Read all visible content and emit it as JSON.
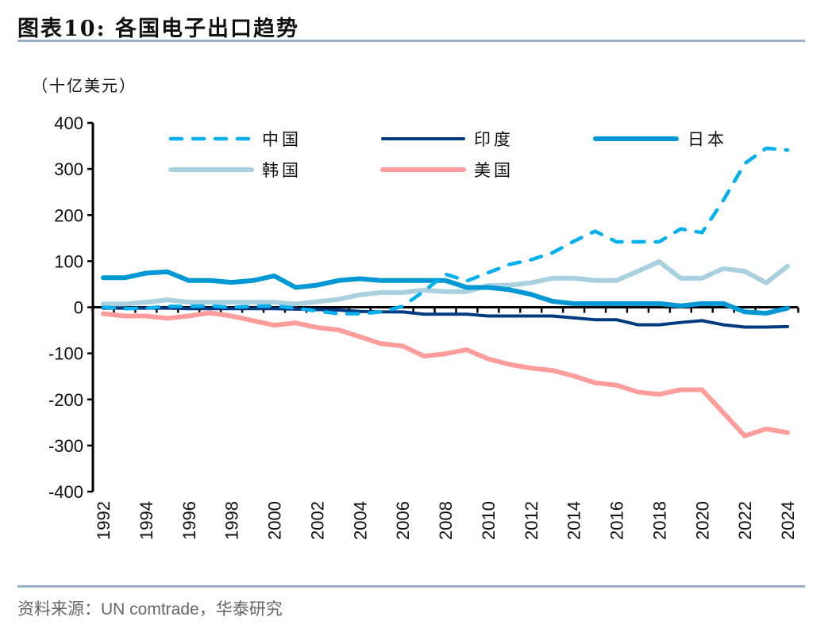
{
  "header": {
    "title": "图表10:  各国电子出口趋势",
    "unit": "（十亿美元）"
  },
  "footer": {
    "source": "资料来源：UN comtrade，华泰研究"
  },
  "chart_data": {
    "type": "line",
    "title": "各国电子出口趋势",
    "ylabel": "（十亿美元）",
    "xlabel": "",
    "ylim": [
      -400,
      400
    ],
    "yticks": [
      "400",
      "300",
      "200",
      "100",
      "0",
      "-100",
      "-200",
      "-300",
      "-400"
    ],
    "ytick_values": [
      400,
      300,
      200,
      100,
      0,
      -100,
      -200,
      -300,
      -400
    ],
    "x": [
      1992,
      1993,
      1994,
      1995,
      1996,
      1997,
      1998,
      1999,
      2000,
      2001,
      2002,
      2003,
      2004,
      2005,
      2006,
      2007,
      2008,
      2009,
      2010,
      2011,
      2012,
      2013,
      2014,
      2015,
      2016,
      2017,
      2018,
      2019,
      2020,
      2021,
      2022,
      2023,
      2024
    ],
    "xtick_labels": [
      "1992",
      "1994",
      "1996",
      "1998",
      "2000",
      "2002",
      "2004",
      "2006",
      "2008",
      "2010",
      "2012",
      "2014",
      "2016",
      "2018",
      "2020",
      "2022",
      "2024"
    ],
    "grid": false,
    "legend_position": "top",
    "series": [
      {
        "name": "中国",
        "color": "#00b0f0",
        "style": "dashed",
        "values": [
          0,
          -3,
          -2,
          2,
          2,
          3,
          0,
          2,
          3,
          -2,
          -8,
          -14,
          -14,
          -10,
          2,
          35,
          72,
          57,
          75,
          93,
          103,
          118,
          143,
          165,
          142,
          142,
          142,
          170,
          162,
          232,
          312,
          345,
          341
        ]
      },
      {
        "name": "印度",
        "color": "#003a80",
        "style": "solid",
        "values": [
          -2,
          -2,
          -2,
          -2,
          -3,
          -3,
          -3,
          -3,
          -3,
          -4,
          -5,
          -6,
          -9,
          -10,
          -10,
          -15,
          -15,
          -15,
          -19,
          -19,
          -19,
          -19,
          -23,
          -27,
          -27,
          -38,
          -38,
          -33,
          -29,
          -38,
          -43,
          -43,
          -42
        ]
      },
      {
        "name": "日本",
        "color": "#0098d4",
        "style": "solid",
        "values": [
          64,
          64,
          74,
          77,
          58,
          58,
          54,
          58,
          68,
          43,
          48,
          58,
          62,
          58,
          58,
          58,
          58,
          43,
          43,
          38,
          28,
          13,
          8,
          8,
          8,
          8,
          8,
          3,
          8,
          8,
          -10,
          -13,
          -2
        ]
      },
      {
        "name": "韩国",
        "color": "#a9d0de",
        "style": "solid",
        "values": [
          7,
          7,
          11,
          16,
          11,
          11,
          11,
          11,
          11,
          7,
          12,
          17,
          27,
          32,
          32,
          37,
          34,
          34,
          47,
          48,
          53,
          63,
          63,
          58,
          58,
          78,
          99,
          63,
          63,
          84,
          78,
          53,
          89
        ]
      },
      {
        "name": "美国",
        "color": "#ff9c9c",
        "style": "solid",
        "values": [
          -14,
          -19,
          -19,
          -24,
          -19,
          -12,
          -19,
          -29,
          -39,
          -34,
          -44,
          -49,
          -64,
          -79,
          -84,
          -106,
          -101,
          -92,
          -112,
          -124,
          -132,
          -137,
          -149,
          -164,
          -169,
          -184,
          -189,
          -179,
          -179,
          -229,
          -279,
          -264,
          -272
        ]
      }
    ]
  }
}
